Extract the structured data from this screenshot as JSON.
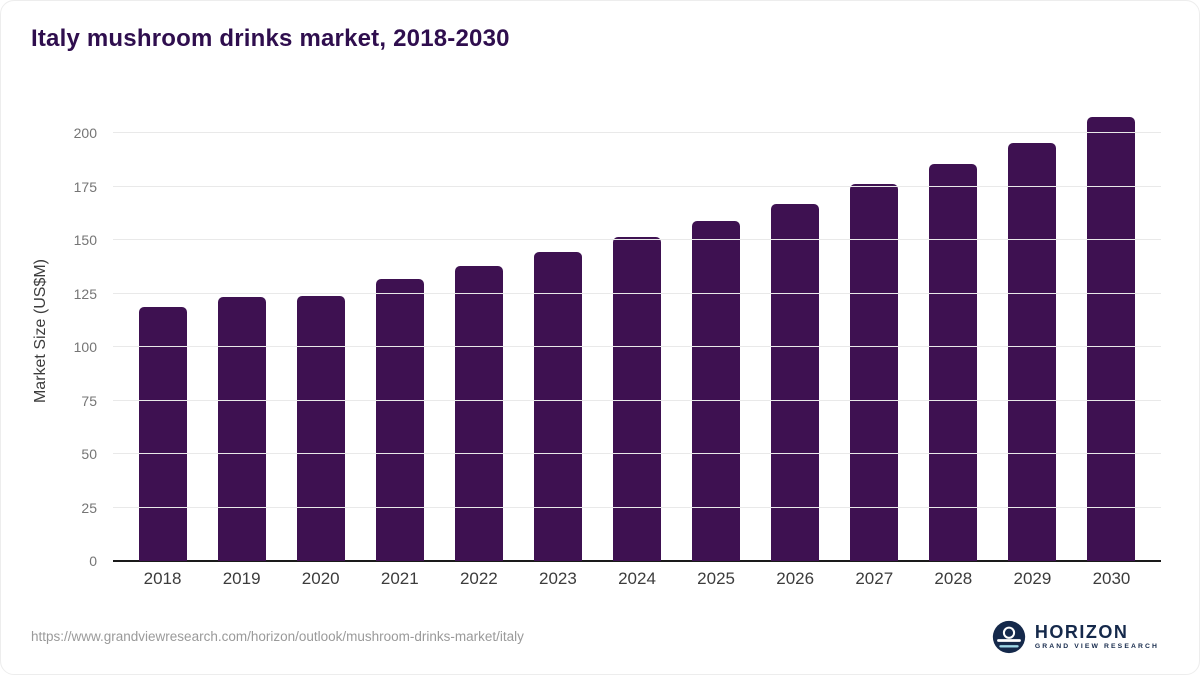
{
  "page": {
    "title": "Italy mushroom drinks market, 2018-2030",
    "source_url": "https://www.grandviewresearch.com/horizon/outlook/mushroom-drinks-market/italy"
  },
  "logo": {
    "name": "HORIZON",
    "subtitle": "GRAND VIEW RESEARCH"
  },
  "colors": {
    "title": "#2f0e4e",
    "bar": "#3e1151",
    "axis": "#1a1a1a",
    "grid": "#e9e9e9",
    "ytick": "#757575",
    "xtick": "#3c3c3c",
    "url": "#9a9a9a",
    "logo_navy": "#15294b"
  },
  "chart_data": {
    "type": "bar",
    "title": "Italy mushroom drinks market, 2018-2030",
    "categories": [
      "2018",
      "2019",
      "2020",
      "2021",
      "2022",
      "2023",
      "2024",
      "2025",
      "2026",
      "2027",
      "2028",
      "2029",
      "2030"
    ],
    "values": [
      118.5,
      123.5,
      124,
      132,
      138,
      144.5,
      151.5,
      159,
      167,
      176,
      185.5,
      195.5,
      207.5
    ],
    "xlabel": "",
    "ylabel": "Market Size (US$M)",
    "ylim": [
      0,
      215
    ],
    "yticks": [
      0,
      25,
      50,
      75,
      100,
      125,
      150,
      175,
      200
    ],
    "grid": true,
    "legend_position": "none"
  }
}
